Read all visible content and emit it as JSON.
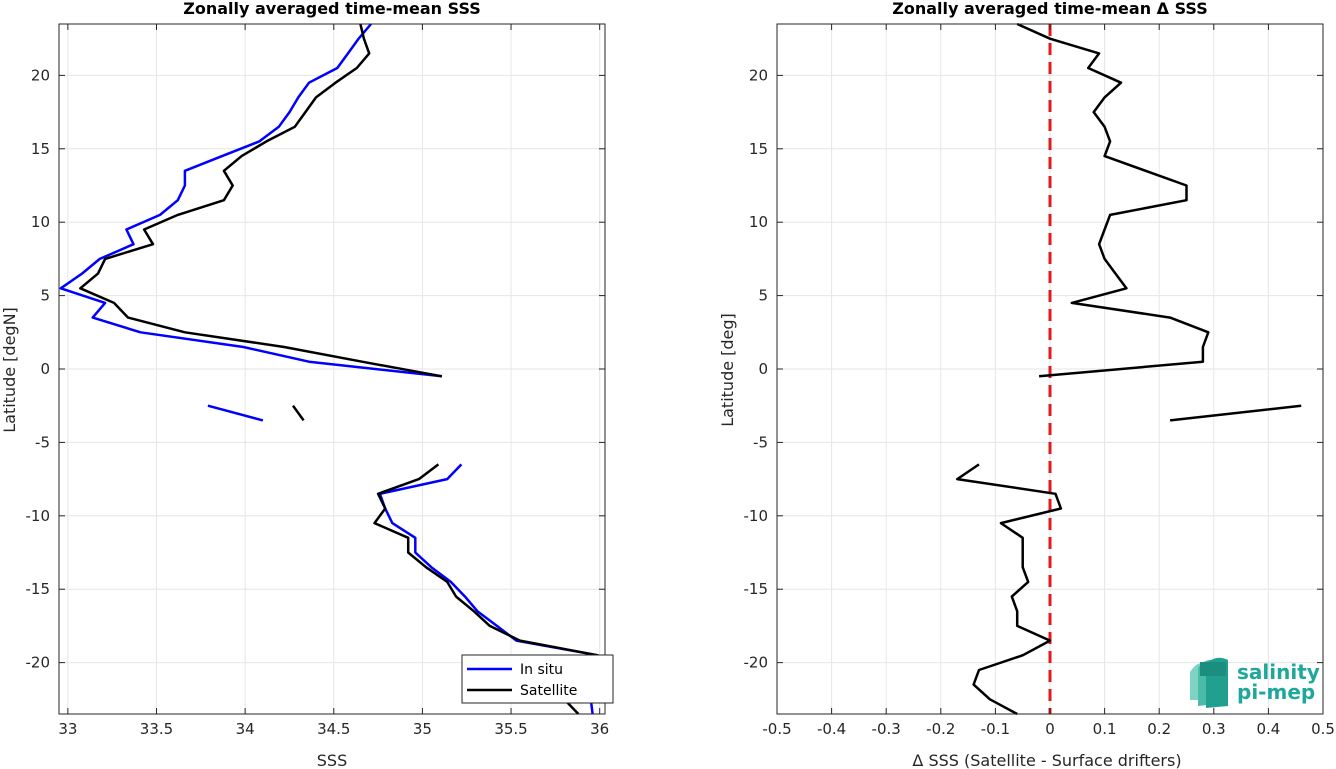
{
  "chart_data": [
    {
      "type": "line",
      "title": "Zonally averaged time-mean SSS",
      "xlabel": "SSS",
      "ylabel": "Latitude [degN]",
      "xlim": [
        32.95,
        36.03
      ],
      "ylim": [
        -23.5,
        23.5
      ],
      "xticks": [
        "33",
        "33.5",
        "34",
        "34.5",
        "35",
        "35.5",
        "36"
      ],
      "yticks": [
        "-20",
        "-15",
        "-10",
        "-5",
        "0",
        "5",
        "10",
        "15",
        "20"
      ],
      "grid": true,
      "legend_position": "bottom-right",
      "series": [
        {
          "name": "In situ",
          "color": "#0000ff",
          "segments": [
            [
              [
                34.71,
                23.5
              ],
              [
                34.64,
                22.5
              ],
              [
                34.58,
                21.5
              ],
              [
                34.52,
                20.5
              ],
              [
                34.36,
                19.5
              ],
              [
                34.3,
                18.5
              ],
              [
                34.25,
                17.5
              ],
              [
                34.19,
                16.5
              ],
              [
                34.08,
                15.5
              ],
              [
                33.87,
                14.5
              ],
              [
                33.66,
                13.5
              ],
              [
                33.66,
                12.5
              ],
              [
                33.62,
                11.5
              ],
              [
                33.52,
                10.5
              ],
              [
                33.33,
                9.5
              ],
              [
                33.37,
                8.5
              ],
              [
                33.18,
                7.5
              ],
              [
                33.08,
                6.5
              ],
              [
                32.96,
                5.5
              ],
              [
                33.21,
                4.5
              ],
              [
                33.14,
                3.5
              ],
              [
                33.41,
                2.5
              ],
              [
                33.99,
                1.5
              ],
              [
                34.36,
                0.5
              ],
              [
                35.11,
                -0.5
              ]
            ],
            [
              [
                33.79,
                -2.5
              ],
              [
                34.1,
                -3.5
              ]
            ],
            [
              [
                35.22,
                -6.5
              ],
              [
                35.14,
                -7.5
              ],
              [
                34.76,
                -8.5
              ],
              [
                34.79,
                -9.5
              ],
              [
                34.83,
                -10.5
              ],
              [
                34.96,
                -11.5
              ],
              [
                34.96,
                -12.5
              ],
              [
                35.05,
                -13.5
              ],
              [
                35.16,
                -14.5
              ],
              [
                35.24,
                -15.5
              ],
              [
                35.31,
                -16.5
              ],
              [
                35.42,
                -17.5
              ],
              [
                35.53,
                -18.5
              ],
              [
                35.99,
                -19.5
              ],
              [
                36.01,
                -20.5
              ],
              [
                36.0,
                -21.5
              ],
              [
                35.95,
                -22.5
              ],
              [
                35.96,
                -23.5
              ]
            ]
          ]
        },
        {
          "name": "Satellite",
          "color": "#000000",
          "segments": [
            [
              [
                34.65,
                23.5
              ],
              [
                34.67,
                22.5
              ],
              [
                34.7,
                21.5
              ],
              [
                34.63,
                20.5
              ],
              [
                34.51,
                19.5
              ],
              [
                34.4,
                18.5
              ],
              [
                34.34,
                17.5
              ],
              [
                34.28,
                16.5
              ],
              [
                34.12,
                15.5
              ],
              [
                33.98,
                14.5
              ],
              [
                33.88,
                13.5
              ],
              [
                33.93,
                12.5
              ],
              [
                33.88,
                11.5
              ],
              [
                33.62,
                10.5
              ],
              [
                33.43,
                9.5
              ],
              [
                33.48,
                8.5
              ],
              [
                33.21,
                7.5
              ],
              [
                33.17,
                6.5
              ],
              [
                33.07,
                5.5
              ],
              [
                33.26,
                4.5
              ],
              [
                33.34,
                3.5
              ],
              [
                33.66,
                2.5
              ],
              [
                34.22,
                1.5
              ],
              [
                34.66,
                0.5
              ],
              [
                35.11,
                -0.5
              ]
            ],
            [
              [
                34.27,
                -2.5
              ],
              [
                34.33,
                -3.5
              ]
            ],
            [
              [
                35.09,
                -6.5
              ],
              [
                34.98,
                -7.5
              ],
              [
                34.75,
                -8.5
              ],
              [
                34.79,
                -9.5
              ],
              [
                34.73,
                -10.5
              ],
              [
                34.92,
                -11.5
              ],
              [
                34.92,
                -12.5
              ],
              [
                35.02,
                -13.5
              ],
              [
                35.14,
                -14.5
              ],
              [
                35.19,
                -15.5
              ],
              [
                35.29,
                -16.5
              ],
              [
                35.38,
                -17.5
              ],
              [
                35.55,
                -18.5
              ],
              [
                35.99,
                -19.5
              ],
              [
                35.97,
                -20.5
              ],
              [
                35.96,
                -21.5
              ],
              [
                35.8,
                -22.5
              ],
              [
                35.88,
                -23.5
              ]
            ]
          ]
        }
      ]
    },
    {
      "type": "line",
      "title": "Zonally averaged time-mean Δ SSS",
      "xlabel": "Δ SSS (Satellite - Surface drifters)",
      "ylabel": "Latitude [deg]",
      "xlim": [
        -0.5,
        0.5
      ],
      "ylim": [
        -23.5,
        23.5
      ],
      "xticks": [
        "-0.5",
        "-0.4",
        "-0.3",
        "-0.2",
        "-0.1",
        "0",
        "0.1",
        "0.2",
        "0.3",
        "0.4",
        "0.5"
      ],
      "yticks": [
        "-20",
        "-15",
        "-10",
        "-5",
        "0",
        "5",
        "10",
        "15",
        "20"
      ],
      "grid": true,
      "zero_line_color": "#e31a1c",
      "series": [
        {
          "color": "#000000",
          "segments": [
            [
              [
                -0.06,
                23.5
              ],
              [
                0.0,
                22.5
              ],
              [
                0.09,
                21.5
              ],
              [
                0.07,
                20.5
              ],
              [
                0.13,
                19.5
              ],
              [
                0.1,
                18.5
              ],
              [
                0.08,
                17.5
              ],
              [
                0.1,
                16.5
              ],
              [
                0.11,
                15.5
              ],
              [
                0.1,
                14.5
              ],
              [
                0.25,
                12.5
              ],
              [
                0.25,
                11.5
              ],
              [
                0.11,
                10.5
              ],
              [
                0.1,
                9.5
              ],
              [
                0.09,
                8.5
              ],
              [
                0.1,
                7.5
              ],
              [
                0.12,
                6.5
              ],
              [
                0.14,
                5.5
              ],
              [
                0.04,
                4.5
              ],
              [
                0.22,
                3.5
              ],
              [
                0.29,
                2.5
              ],
              [
                0.28,
                1.5
              ],
              [
                0.28,
                0.5
              ],
              [
                -0.02,
                -0.5
              ]
            ],
            [
              [
                0.46,
                -2.5
              ],
              [
                0.22,
                -3.5
              ]
            ],
            [
              [
                -0.13,
                -6.5
              ],
              [
                -0.17,
                -7.5
              ],
              [
                0.01,
                -8.5
              ],
              [
                0.02,
                -9.5
              ],
              [
                -0.09,
                -10.5
              ],
              [
                -0.05,
                -11.5
              ],
              [
                -0.05,
                -12.5
              ],
              [
                -0.05,
                -13.5
              ],
              [
                -0.04,
                -14.5
              ],
              [
                -0.07,
                -15.5
              ],
              [
                -0.06,
                -16.5
              ],
              [
                -0.06,
                -17.5
              ],
              [
                0.0,
                -18.5
              ],
              [
                -0.05,
                -19.5
              ],
              [
                -0.13,
                -20.5
              ],
              [
                -0.14,
                -21.5
              ],
              [
                -0.11,
                -22.5
              ],
              [
                -0.06,
                -23.5
              ]
            ]
          ]
        }
      ]
    }
  ],
  "logo": {
    "line1": "salinity",
    "line2": "pi-mep",
    "color": "#1fa89a"
  }
}
